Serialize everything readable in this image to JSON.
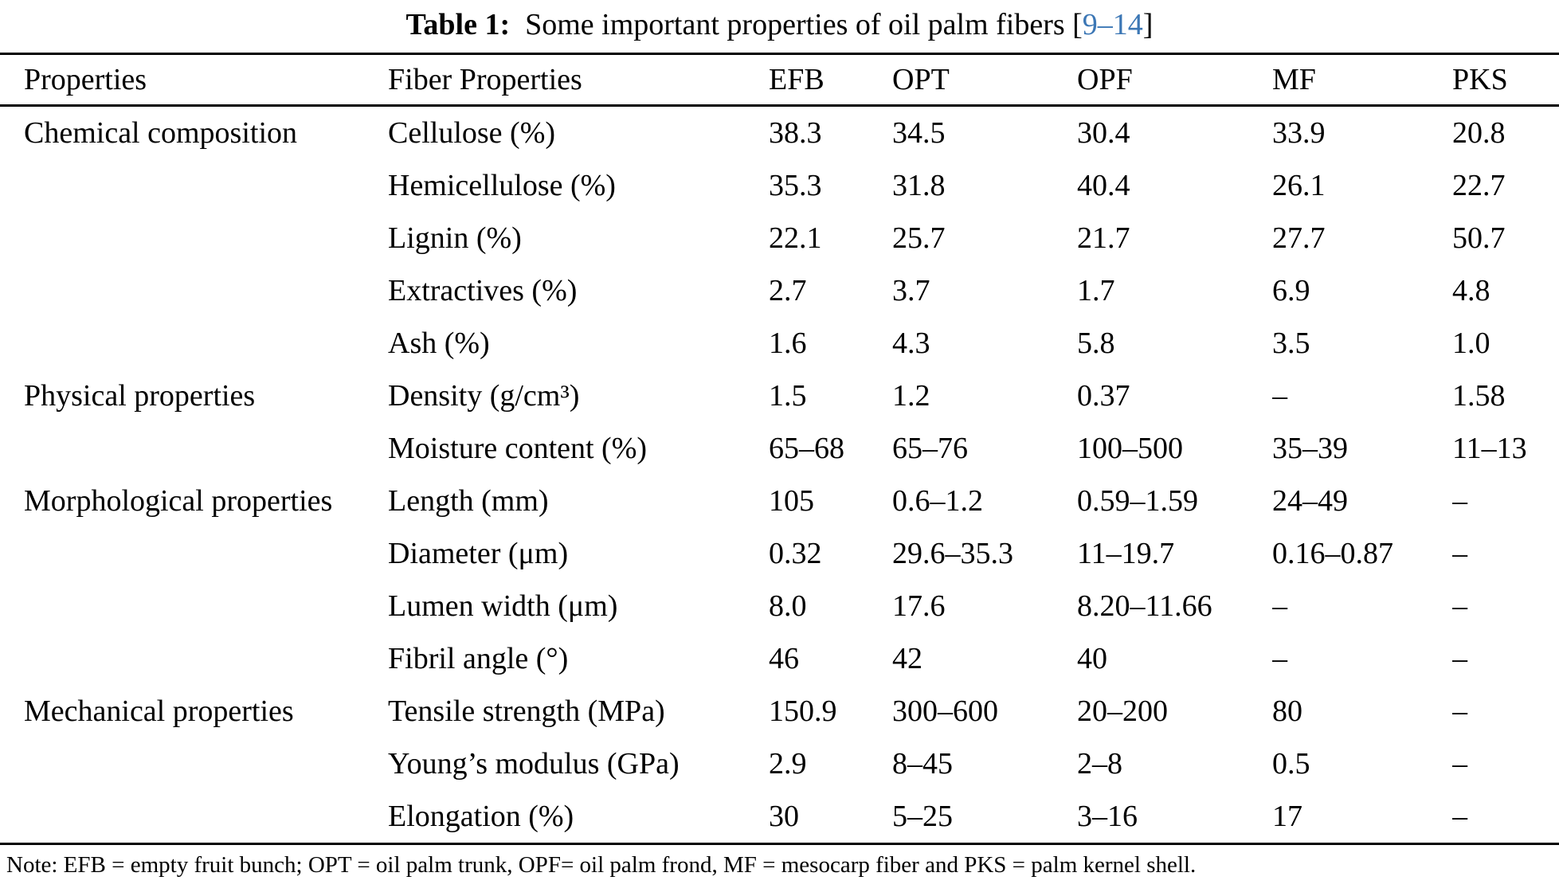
{
  "caption": {
    "label": "Table 1:",
    "text": "  Some important properties of oil palm fibers ",
    "ref_open": "[",
    "ref": "9–14",
    "ref_close": "]"
  },
  "table": {
    "headers": [
      "Properties",
      "Fiber Properties",
      "EFB",
      "OPT",
      "OPF",
      "MF",
      "PKS"
    ],
    "rows": [
      {
        "group": "Chemical composition",
        "group_rowspan": 5,
        "property": "Cellulose (%)",
        "values": [
          "38.3",
          "34.5",
          "30.4",
          "33.9",
          "20.8"
        ]
      },
      {
        "property": "Hemicellulose (%)",
        "values": [
          "35.3",
          "31.8",
          "40.4",
          "26.1",
          "22.7"
        ]
      },
      {
        "property": "Lignin (%)",
        "values": [
          "22.1",
          "25.7",
          "21.7",
          "27.7",
          "50.7"
        ]
      },
      {
        "property": "Extractives (%)",
        "values": [
          "2.7",
          "3.7",
          "1.7",
          "6.9",
          "4.8"
        ]
      },
      {
        "property": "Ash (%)",
        "values": [
          "1.6",
          "4.3",
          "5.8",
          "3.5",
          "1.0"
        ]
      },
      {
        "group": "Physical properties",
        "group_rowspan": 2,
        "property": "Density (g/cm³)",
        "values": [
          "1.5",
          "1.2",
          "0.37",
          "–",
          "1.58"
        ]
      },
      {
        "property": "Moisture content (%)",
        "values": [
          "65–68",
          "65–76",
          "100–500",
          "35–39",
          "11–13"
        ]
      },
      {
        "group": "Morphological properties",
        "group_rowspan": 4,
        "property": "Length (mm)",
        "values": [
          "105",
          "0.6–1.2",
          "0.59–1.59",
          "24–49",
          "–"
        ]
      },
      {
        "property": "Diameter (μm)",
        "values": [
          "0.32",
          "29.6–35.3",
          "11–19.7",
          "0.16–0.87",
          "–"
        ]
      },
      {
        "property": "Lumen width (μm)",
        "values": [
          "8.0",
          "17.6",
          "8.20–11.66",
          "–",
          "–"
        ]
      },
      {
        "property": "Fibril angle (°)",
        "values": [
          "46",
          "42",
          "40",
          "–",
          "–"
        ]
      },
      {
        "group": "Mechanical properties",
        "group_rowspan": 3,
        "property": "Tensile strength (MPa)",
        "values": [
          "150.9",
          "300–600",
          "20–200",
          "80",
          "–"
        ]
      },
      {
        "property": "Young’s modulus (GPa)",
        "values": [
          "2.9",
          "8–45",
          "2–8",
          "0.5",
          "–"
        ]
      },
      {
        "property": "Elongation (%)",
        "values": [
          "30",
          "5–25",
          "3–16",
          "17",
          "–"
        ]
      }
    ]
  },
  "note": "Note: EFB = empty fruit bunch; OPT = oil palm trunk, OPF= oil palm frond, MF = mesocarp fiber and PKS = palm kernel shell."
}
